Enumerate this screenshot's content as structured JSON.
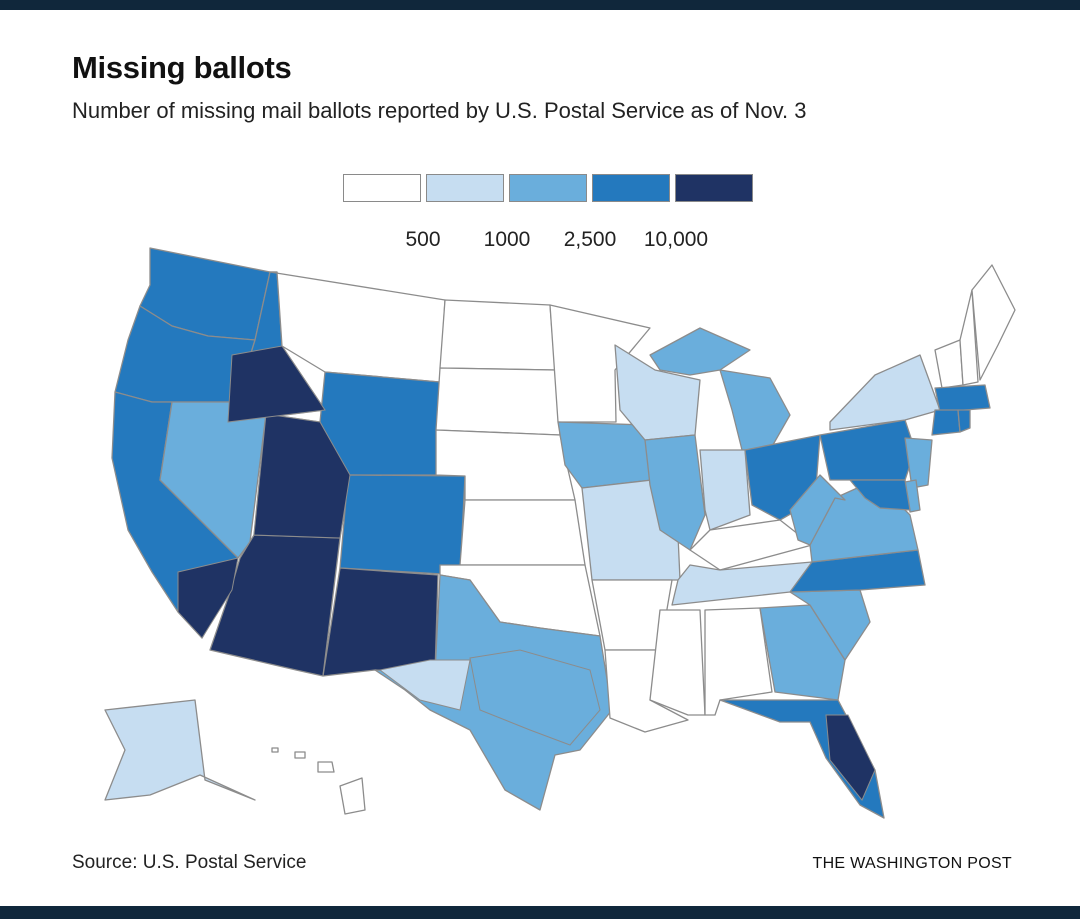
{
  "title": "Missing ballots",
  "subtitle": "Number of missing mail ballots reported by U.S. Postal Service as of Nov. 3",
  "legend": {
    "colors": [
      "#ffffff",
      "#c6ddf1",
      "#6aaedc",
      "#2479be",
      "#1f3364"
    ],
    "ticks": [
      "500",
      "1000",
      "2,500",
      "10,000"
    ]
  },
  "source": "Source: U.S. Postal Service",
  "credit": "THE WASHINGTON POST",
  "map_data": {
    "type": "choropleth",
    "bins": [
      "< 500",
      "500–1000",
      "1000–2,500",
      "2,500–10,000",
      "> 10,000"
    ],
    "states": {
      "WA": 3,
      "OR": 3,
      "CA": 3,
      "ID": 3,
      "NV": 2,
      "UT": 4,
      "AZ": 4,
      "MT": 0,
      "WY": 3,
      "CO": 3,
      "NM": 4,
      "ND": 0,
      "SD": 0,
      "NE": 0,
      "KS": 0,
      "OK": 0,
      "TX": 2,
      "MN": 0,
      "IA": 2,
      "MO": 1,
      "AR": 0,
      "LA": 0,
      "WI": 1,
      "IL": 2,
      "MI": 2,
      "IN": 1,
      "OH": 3,
      "KY": 0,
      "TN": 1,
      "MS": 0,
      "AL": 0,
      "GA": 2,
      "FL": 3,
      "SC": 2,
      "NC": 3,
      "VA": 2,
      "WV": 2,
      "PA": 3,
      "NY": 1,
      "VT": 0,
      "NH": 0,
      "ME": 0,
      "MA": 3,
      "CT": 3,
      "RI": 3,
      "NJ": 2,
      "DE": 2,
      "MD": 3,
      "AK": 1,
      "HI": 0
    },
    "regions": [
      {
        "name": "UT",
        "bin": 4
      },
      {
        "name": "Southern California",
        "bin": 4
      },
      {
        "name": "Southern Idaho",
        "bin": 4
      },
      {
        "name": "Central Florida",
        "bin": 4
      },
      {
        "name": "Southeast Texas",
        "bin": 2
      },
      {
        "name": "West Texas",
        "bin": 1
      }
    ]
  }
}
